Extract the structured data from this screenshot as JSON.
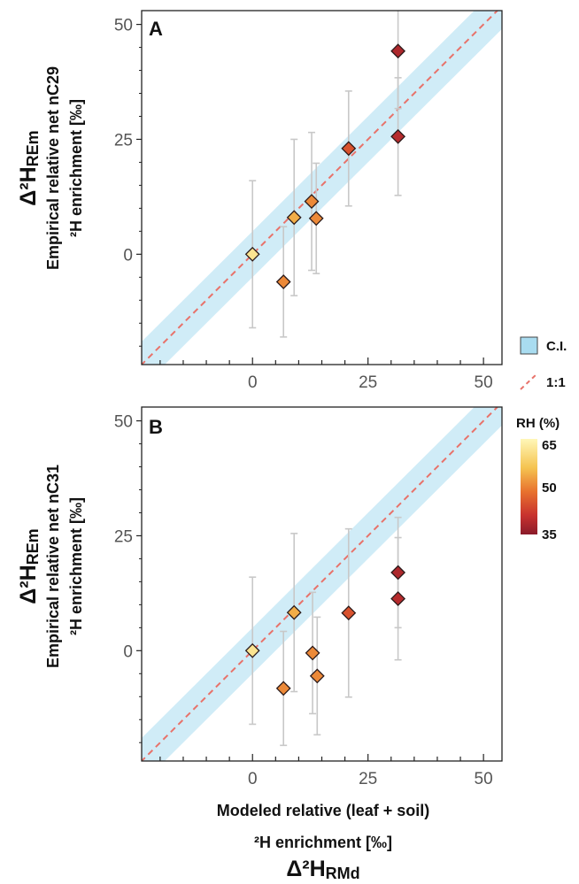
{
  "legend": {
    "ci_label": "C.I.",
    "ci_color": "#a9dcf0",
    "line_label": "1:1",
    "line_color": "#e8726a",
    "rh_title": "RH (%)",
    "rh_ticks": [
      "65",
      "50",
      "35"
    ],
    "rh_gradient": [
      "#fff7b8",
      "#f5c451",
      "#e8722e",
      "#c8322e",
      "#8a1b2a"
    ]
  },
  "x_axis": {
    "label_line1": "Modeled relative (leaf + soil)",
    "label_line2": "²H enrichment [‰]",
    "symbol": "Δ²H",
    "symbol_sub": "RMd"
  },
  "chart_data": [
    {
      "panel": "A",
      "type": "scatter",
      "ylabel_symbol": "Δ²H",
      "ylabel_symbol_sub": "REm",
      "ylabel_line1": "Empirical relative net nC29",
      "ylabel_line2": "²H enrichment [‰]",
      "xlim": [
        -24,
        54
      ],
      "ylim": [
        -24,
        53
      ],
      "xticks": [
        0,
        25,
        50
      ],
      "yticks": [
        0,
        25,
        50
      ],
      "ci_half_width": 5,
      "points": [
        {
          "x": 0,
          "y": 0,
          "err": 16,
          "rh": 62
        },
        {
          "x": 6.7,
          "y": -6,
          "err": 12,
          "rh": 52
        },
        {
          "x": 9,
          "y": 8,
          "err": 17,
          "rh": 55
        },
        {
          "x": 12.8,
          "y": 11.5,
          "err": 15,
          "rh": 52
        },
        {
          "x": 13.8,
          "y": 7.8,
          "err": 12,
          "rh": 52
        },
        {
          "x": 20.8,
          "y": 23,
          "err": 12.5,
          "rh": 46
        },
        {
          "x": 31.5,
          "y": 25.6,
          "err": 12.8,
          "rh": 40
        },
        {
          "x": 31.5,
          "y": 44.2,
          "err": 12.5,
          "rh": 39
        }
      ]
    },
    {
      "panel": "B",
      "type": "scatter",
      "ylabel_symbol": "Δ²H",
      "ylabel_symbol_sub": "REm",
      "ylabel_line1": "Empirical relative net nC31",
      "ylabel_line2": "²H enrichment [‰]",
      "xlim": [
        -24,
        54
      ],
      "ylim": [
        -24,
        53
      ],
      "xticks": [
        0,
        25,
        50
      ],
      "yticks": [
        0,
        25,
        50
      ],
      "ci_half_width": 5,
      "points": [
        {
          "x": 0,
          "y": 0,
          "err": 16,
          "rh": 62
        },
        {
          "x": 6.7,
          "y": -8.2,
          "err": 12.4,
          "rh": 52
        },
        {
          "x": 9,
          "y": 8.3,
          "err": 17.2,
          "rh": 55
        },
        {
          "x": 13,
          "y": -0.5,
          "err": 13.2,
          "rh": 52
        },
        {
          "x": 14,
          "y": -5.5,
          "err": 12.8,
          "rh": 52
        },
        {
          "x": 20.8,
          "y": 8.2,
          "err": 18.3,
          "rh": 46
        },
        {
          "x": 31.5,
          "y": 11.3,
          "err": 13.3,
          "rh": 40
        },
        {
          "x": 31.5,
          "y": 17,
          "err": 12,
          "rh": 39
        }
      ]
    }
  ]
}
